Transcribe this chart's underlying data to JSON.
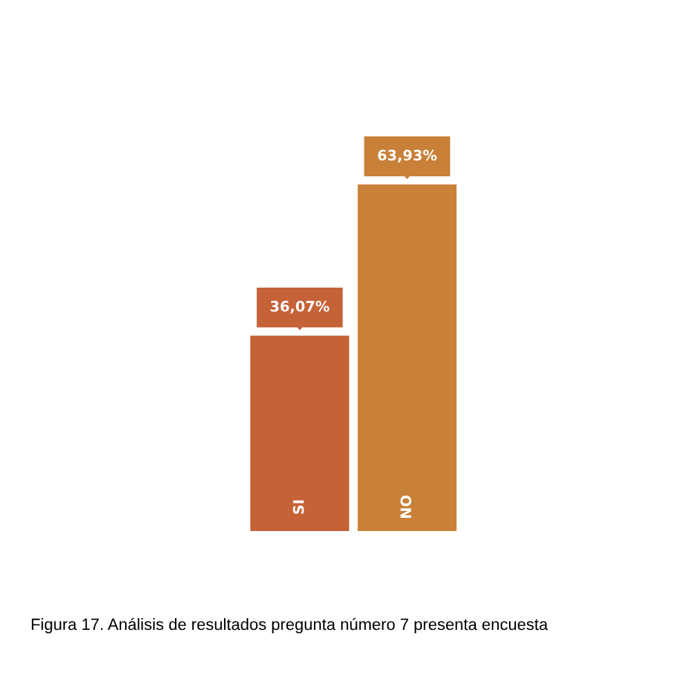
{
  "chart_data": {
    "type": "bar",
    "categories": [
      "SI",
      "NO"
    ],
    "values": [
      36.07,
      63.93
    ],
    "colors": [
      "#c66238",
      "#c98038"
    ],
    "value_labels": [
      "36,07%",
      "63,93%"
    ],
    "annotations": [
      "Figura 17. Análisis de resultados pregunta número 7 presenta encuesta"
    ]
  }
}
